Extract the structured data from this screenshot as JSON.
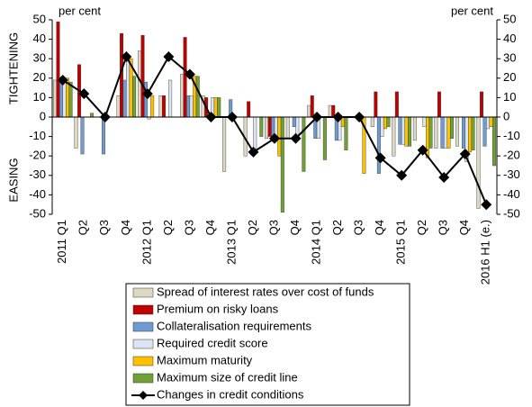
{
  "chart_data": {
    "type": "bar",
    "left_unit": "per cent",
    "right_unit": "per cent",
    "upper_label": "TIGHTENING",
    "lower_label": "EASING",
    "categories": [
      "2011 Q1",
      "Q2",
      "Q3",
      "Q4",
      "2012 Q1",
      "Q2",
      "Q3",
      "Q4",
      "2013 Q1",
      "Q2",
      "Q3",
      "Q4",
      "2014 Q1",
      "Q2",
      "Q3",
      "Q4",
      "2015 Q1",
      "Q2",
      "Q3",
      "Q4",
      "2016 H1 (e.)"
    ],
    "series": [
      {
        "name": "Spread of interest rates over cost of funds",
        "color": "#ddd9c4",
        "values": [
          19,
          -16,
          0,
          11,
          34,
          11,
          22,
          11,
          -28,
          -20,
          -11,
          -11,
          6,
          6,
          0,
          -5,
          -20,
          -12,
          -16,
          -15,
          -47
        ]
      },
      {
        "name": "Premium on risky loans",
        "color": "#c00000",
        "values": [
          49,
          27,
          0,
          43,
          42,
          11,
          41,
          10,
          0,
          8,
          -10,
          0,
          11,
          6,
          0,
          13,
          13,
          0,
          13,
          0,
          13
        ]
      },
      {
        "name": "Collateralisation requirements",
        "color": "#6f9bd1",
        "values": [
          20,
          -19,
          -19,
          19,
          18,
          0,
          11,
          0,
          9,
          0,
          -10,
          -5,
          -11,
          -12,
          0,
          -29,
          -14,
          0,
          -16,
          -16,
          -15
        ]
      },
      {
        "name": "Required credit score",
        "color": "#dbe5f1",
        "values": [
          19,
          0,
          0,
          31,
          -1,
          19,
          11,
          10,
          0,
          -17,
          -11,
          -11,
          -11,
          -12,
          0,
          -10,
          -14,
          -5,
          -16,
          -23,
          -6
        ]
      },
      {
        "name": "Maximum maturity",
        "color": "#ffc000",
        "values": [
          20,
          0,
          0,
          30,
          11,
          0,
          21,
          10,
          0,
          0,
          -20,
          0,
          0,
          -5,
          -29,
          -6,
          -15,
          -21,
          -16,
          -18,
          -5
        ]
      },
      {
        "name": "Maximum size of credit line",
        "color": "#70a135",
        "values": [
          18,
          2,
          0,
          21,
          0,
          0,
          21,
          10,
          0,
          -10,
          -49,
          -28,
          -22,
          -17,
          0,
          -5,
          -15,
          -16,
          -11,
          -17,
          -25
        ]
      },
      {
        "name": "Changes in credit conditions",
        "color": "#000000",
        "type": "line",
        "values": [
          19,
          12,
          0,
          31,
          12,
          31,
          22,
          0,
          0,
          -18,
          -11,
          -11,
          0,
          0,
          0,
          -21,
          -30,
          -17,
          -31,
          -19,
          -45
        ]
      }
    ],
    "ylim": [
      -50,
      50
    ],
    "yticks": [
      -50,
      -40,
      -30,
      -20,
      -10,
      0,
      10,
      20,
      30,
      40,
      50
    ],
    "y2lim": [
      -50,
      50
    ],
    "y2ticks": [
      -50,
      -40,
      -30,
      -20,
      -10,
      0,
      10,
      20,
      30,
      40,
      50
    ],
    "legend": "bottom"
  }
}
